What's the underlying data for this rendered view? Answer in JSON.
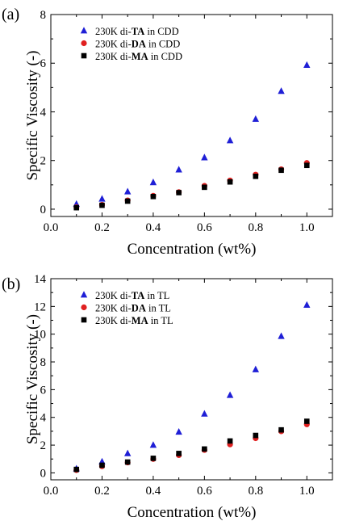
{
  "chart_data": [
    {
      "type": "scatter",
      "panel_label": "(a)",
      "xlabel": "Concentration (wt%)",
      "ylabel": "Specific Viscosity (-)",
      "xlim": [
        0.0,
        1.1
      ],
      "ylim": [
        -0.3,
        8
      ],
      "xticks": [
        0.0,
        0.2,
        0.4,
        0.6,
        0.8,
        1.0
      ],
      "xtick_labels": [
        "0.0",
        "0.2",
        "0.4",
        "0.6",
        "0.8",
        "1.0"
      ],
      "yticks": [
        0,
        2,
        4,
        6,
        8
      ],
      "ytick_labels": [
        "0",
        "2",
        "4",
        "6",
        "8"
      ],
      "legend_position": "top-left",
      "grid": false,
      "series": [
        {
          "legend_pre": "230K di-",
          "legend_bold": "TA",
          "legend_post": " in CDD",
          "marker": "triangle",
          "color": "#1f1fd6",
          "x": [
            0.1,
            0.2,
            0.3,
            0.4,
            0.5,
            0.6,
            0.7,
            0.8,
            0.9,
            1.0
          ],
          "y": [
            0.21,
            0.42,
            0.72,
            1.1,
            1.62,
            2.12,
            2.82,
            3.7,
            4.85,
            5.92
          ]
        },
        {
          "legend_pre": "230K di-",
          "legend_bold": "DA",
          "legend_post": " in CDD",
          "marker": "circle",
          "color": "#e02020",
          "x": [
            0.1,
            0.2,
            0.3,
            0.4,
            0.5,
            0.6,
            0.7,
            0.8,
            0.9,
            1.0
          ],
          "y": [
            0.08,
            0.18,
            0.36,
            0.55,
            0.7,
            0.96,
            1.18,
            1.42,
            1.64,
            1.9
          ]
        },
        {
          "legend_pre": "230K di-",
          "legend_bold": "MA",
          "legend_post": " in CDD",
          "marker": "square",
          "color": "#000000",
          "x": [
            0.1,
            0.2,
            0.3,
            0.4,
            0.5,
            0.6,
            0.7,
            0.8,
            0.9,
            1.0
          ],
          "y": [
            0.06,
            0.16,
            0.33,
            0.52,
            0.68,
            0.9,
            1.12,
            1.35,
            1.6,
            1.8
          ]
        }
      ]
    },
    {
      "type": "scatter",
      "panel_label": "(b)",
      "xlabel": "Concentration (wt%)",
      "ylabel": "Specific Viscosity (-)",
      "xlim": [
        0.0,
        1.1
      ],
      "ylim": [
        -0.5,
        14
      ],
      "xticks": [
        0.0,
        0.2,
        0.4,
        0.6,
        0.8,
        1.0
      ],
      "xtick_labels": [
        "0.0",
        "0.2",
        "0.4",
        "0.6",
        "0.8",
        "1.0"
      ],
      "yticks": [
        0,
        2,
        4,
        6,
        8,
        10,
        12,
        14
      ],
      "ytick_labels": [
        "0",
        "2",
        "4",
        "6",
        "8",
        "10",
        "12",
        "14"
      ],
      "legend_position": "top-left",
      "grid": false,
      "series": [
        {
          "legend_pre": "230K di-",
          "legend_bold": "TA",
          "legend_post": " in TL",
          "marker": "triangle",
          "color": "#1f1fd6",
          "x": [
            0.1,
            0.2,
            0.3,
            0.4,
            0.5,
            0.6,
            0.7,
            0.8,
            0.9,
            1.0
          ],
          "y": [
            0.3,
            0.8,
            1.4,
            2.0,
            2.95,
            4.25,
            5.6,
            7.45,
            9.85,
            12.1
          ]
        },
        {
          "legend_pre": "230K di-",
          "legend_bold": "DA",
          "legend_post": " in TL",
          "marker": "circle",
          "color": "#e02020",
          "x": [
            0.1,
            0.2,
            0.3,
            0.4,
            0.5,
            0.6,
            0.7,
            0.8,
            0.9,
            1.0
          ],
          "y": [
            0.2,
            0.48,
            0.75,
            1.0,
            1.28,
            1.65,
            2.05,
            2.5,
            3.0,
            3.5
          ]
        },
        {
          "legend_pre": "230K di-",
          "legend_bold": "MA",
          "legend_post": " in TL",
          "marker": "square",
          "color": "#000000",
          "x": [
            0.1,
            0.2,
            0.3,
            0.4,
            0.5,
            0.6,
            0.7,
            0.8,
            0.9,
            1.0
          ],
          "y": [
            0.25,
            0.55,
            0.78,
            1.05,
            1.4,
            1.72,
            2.3,
            2.7,
            3.1,
            3.72
          ]
        }
      ]
    }
  ]
}
